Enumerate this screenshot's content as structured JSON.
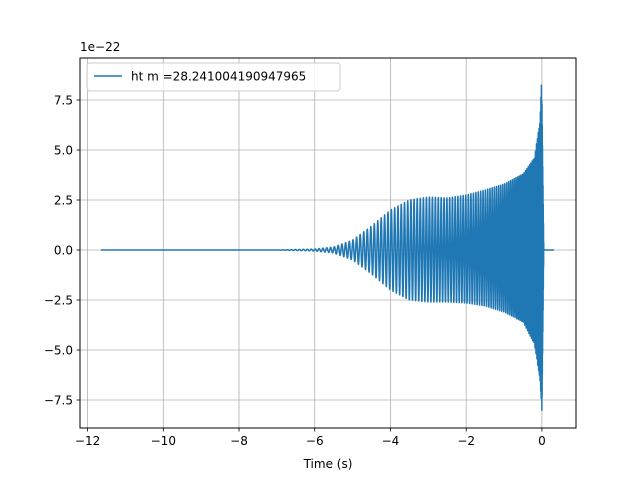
{
  "chart_data": {
    "type": "line",
    "xlabel": "Time (s)",
    "ylabel": "",
    "y_offset_label": "1e−22",
    "y_scale_exponent": -22,
    "xlim": [
      -12.2,
      0.9
    ],
    "ylim": [
      -8.9,
      9.6
    ],
    "xticks": [
      -12,
      -10,
      -8,
      -6,
      -4,
      -2,
      0
    ],
    "xtick_labels": [
      "−12",
      "−10",
      "−8",
      "−6",
      "−4",
      "−2",
      "0"
    ],
    "yticks": [
      -7.5,
      -5.0,
      -2.5,
      0.0,
      2.5,
      5.0,
      7.5
    ],
    "ytick_labels": [
      "−7.5",
      "−5.0",
      "−2.5",
      "0.0",
      "2.5",
      "5.0",
      "7.5"
    ],
    "grid": true,
    "legend_position": "upper-left",
    "series": [
      {
        "name": "ht m =28.241004190947965",
        "color": "#1f77b4",
        "t_start": -11.65,
        "t_merger": 0.0,
        "t_end": 0.32,
        "envelope": {
          "t": [
            -11.65,
            -7.0,
            -6.0,
            -5.5,
            -5.0,
            -4.5,
            -4.0,
            -3.5,
            -3.0,
            -2.5,
            -2.0,
            -1.5,
            -1.0,
            -0.5,
            -0.2,
            -0.05,
            0.0,
            0.05,
            0.32
          ],
          "upper": [
            0.0,
            0.0,
            0.05,
            0.15,
            0.5,
            1.2,
            2.0,
            2.5,
            2.65,
            2.6,
            2.75,
            3.0,
            3.3,
            3.8,
            4.6,
            6.5,
            8.9,
            0.0,
            0.0
          ],
          "lower": [
            0.0,
            0.0,
            -0.05,
            -0.15,
            -0.5,
            -1.2,
            -2.0,
            -2.5,
            -2.6,
            -2.6,
            -2.65,
            -2.8,
            -3.1,
            -3.6,
            -4.7,
            -6.5,
            -8.1,
            0.0,
            0.0
          ]
        }
      }
    ]
  }
}
